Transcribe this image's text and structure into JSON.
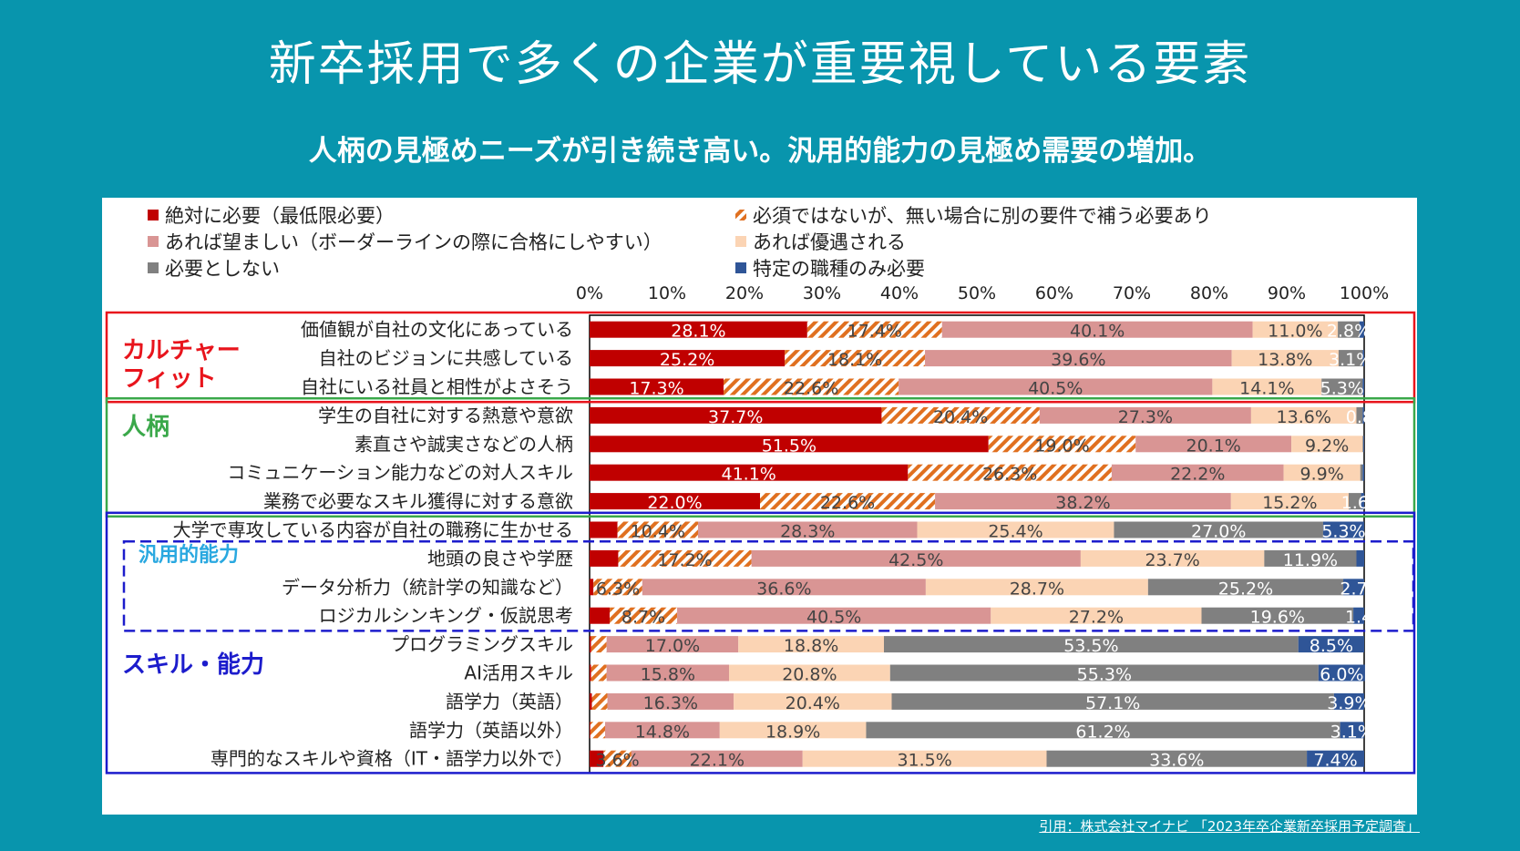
{
  "title": "新卒採用で多くの企業が重要視している要素",
  "subtitle": "人柄の見極めニーズが引き続き高い。汎用的能力の見極め需要の増加。",
  "citation": "引用：株式会社マイナビ 「2023年卒企業新卒採用予定調査」",
  "chart_data": {
    "type": "stacked-bar-horizontal",
    "xlim": [
      0,
      100
    ],
    "ticks": [
      "0%",
      "10%",
      "20%",
      "30%",
      "40%",
      "50%",
      "60%",
      "70%",
      "80%",
      "90%",
      "100%"
    ],
    "legend": [
      {
        "name": "絶対に必要（最低限必要）",
        "color": "#c00000",
        "pattern": "solid"
      },
      {
        "name": "必須ではないが、無い場合に別の要件で補う必要あり",
        "color": "#e07020",
        "pattern": "hatch"
      },
      {
        "name": "あれば望ましい（ボーダーラインの際に合格にしやすい）",
        "color": "#d99594",
        "pattern": "solid"
      },
      {
        "name": "あれば優遇される",
        "color": "#fbd4b4",
        "pattern": "solid"
      },
      {
        "name": "必要としない",
        "color": "#808080",
        "pattern": "solid"
      },
      {
        "name": "特定の職種のみ必要",
        "color": "#2f5597",
        "pattern": "solid"
      }
    ],
    "groups": [
      {
        "label_lines": [
          "カルチャー",
          "フィット"
        ],
        "color": "#e8141c",
        "box": "solid"
      },
      {
        "label_lines": [
          "人柄"
        ],
        "color": "#3aa84a",
        "box": "solid"
      },
      {
        "label_lines": [
          "汎用的能力"
        ],
        "color": "#29a8e0",
        "box": "dashed"
      },
      {
        "label_lines": [
          "スキル・能力"
        ],
        "color": "#1c1ccc",
        "box": "solid"
      }
    ],
    "rows": [
      {
        "label": "価値観が自社の文化にあっている",
        "values": [
          28.1,
          17.4,
          40.1,
          11.0,
          2.8,
          0.6
        ],
        "labels": [
          "28.1%",
          "17.4%",
          "40.1%",
          "11.0%",
          "2.8%",
          ""
        ]
      },
      {
        "label": "自社のビジョンに共感している",
        "values": [
          25.2,
          18.1,
          39.6,
          13.8,
          3.1,
          0.2
        ],
        "labels": [
          "25.2%",
          "18.1%",
          "39.6%",
          "13.8%",
          "3.1%",
          ""
        ]
      },
      {
        "label": "自社にいる社員と相性がよさそう",
        "values": [
          17.3,
          22.6,
          40.5,
          14.1,
          5.3,
          0.2
        ],
        "labels": [
          "17.3%",
          "22.6%",
          "40.5%",
          "14.1%",
          "5.3%",
          ""
        ]
      },
      {
        "label": "学生の自社に対する熱意や意欲",
        "values": [
          37.7,
          20.4,
          27.3,
          13.6,
          0.8,
          0.2
        ],
        "labels": [
          "37.7%",
          "20.4%",
          "27.3%",
          "13.6%",
          "0.8",
          ""
        ]
      },
      {
        "label": "素直さや誠実さなどの人柄",
        "values": [
          51.5,
          19.0,
          20.1,
          9.2,
          0.1,
          0.1
        ],
        "labels": [
          "51.5%",
          "19.0%",
          "20.1%",
          "9.2%",
          "",
          ""
        ]
      },
      {
        "label": "コミュニケーション能力などの対人スキル",
        "values": [
          41.1,
          26.3,
          22.2,
          9.9,
          0.3,
          0.2
        ],
        "labels": [
          "41.1%",
          "26.3%",
          "22.2%",
          "9.9%",
          "",
          ""
        ]
      },
      {
        "label": "業務で必要なスキル獲得に対する意欲",
        "values": [
          22.0,
          22.6,
          38.2,
          15.2,
          1.6,
          0.4
        ],
        "labels": [
          "22.0%",
          "22.6%",
          "38.2%",
          "15.2%",
          "1.6",
          ""
        ]
      },
      {
        "label": "大学で専攻している内容が自社の職務に生かせる",
        "values": [
          3.6,
          10.4,
          28.3,
          25.4,
          27.0,
          5.3
        ],
        "labels": [
          "",
          "10.4%",
          "28.3%",
          "25.4%",
          "27.0%",
          "5.3%"
        ]
      },
      {
        "label": "地頭の良さや学歴",
        "values": [
          3.7,
          17.2,
          42.5,
          23.7,
          11.9,
          1.0
        ],
        "labels": [
          "",
          "17.2%",
          "42.5%",
          "23.7%",
          "11.9%",
          ""
        ]
      },
      {
        "label": "データ分析力（統計学の知識など）",
        "values": [
          0.5,
          6.3,
          36.6,
          28.7,
          25.2,
          2.7
        ],
        "labels": [
          "",
          "6.3%",
          "36.6%",
          "28.7%",
          "25.2%",
          "2.7"
        ]
      },
      {
        "label": "ロジカルシンキング・仮説思考",
        "values": [
          2.6,
          8.7,
          40.5,
          27.2,
          19.6,
          1.4
        ],
        "labels": [
          "",
          "8.7%",
          "40.5%",
          "27.2%",
          "19.6%",
          "1.4"
        ]
      },
      {
        "label": "プログラミングスキル",
        "values": [
          0.2,
          2.0,
          17.0,
          18.8,
          53.5,
          8.5
        ],
        "labels": [
          "",
          "",
          "17.0%",
          "18.8%",
          "53.5%",
          "8.5%"
        ]
      },
      {
        "label": "AI活用スキル",
        "values": [
          0.2,
          2.0,
          15.8,
          20.8,
          55.3,
          6.0
        ],
        "labels": [
          "",
          "",
          "15.8%",
          "20.8%",
          "55.3%",
          "6.0%"
        ]
      },
      {
        "label": "語学力（英語）",
        "values": [
          0.3,
          2.0,
          16.3,
          20.4,
          57.1,
          3.9
        ],
        "labels": [
          "",
          "",
          "16.3%",
          "20.4%",
          "57.1%",
          "3.9%"
        ]
      },
      {
        "label": "語学力（英語以外）",
        "values": [
          0.1,
          1.9,
          14.8,
          18.9,
          61.2,
          3.1
        ],
        "labels": [
          "",
          "",
          "14.8%",
          "18.9%",
          "61.2%",
          "3.1%"
        ]
      },
      {
        "label": "専門的なスキルや資格（IT・語学力以外で）",
        "values": [
          1.8,
          3.6,
          22.1,
          31.5,
          33.6,
          7.4
        ],
        "labels": [
          "",
          "3.6%",
          "22.1%",
          "31.5%",
          "33.6%",
          "7.4%"
        ]
      }
    ]
  }
}
